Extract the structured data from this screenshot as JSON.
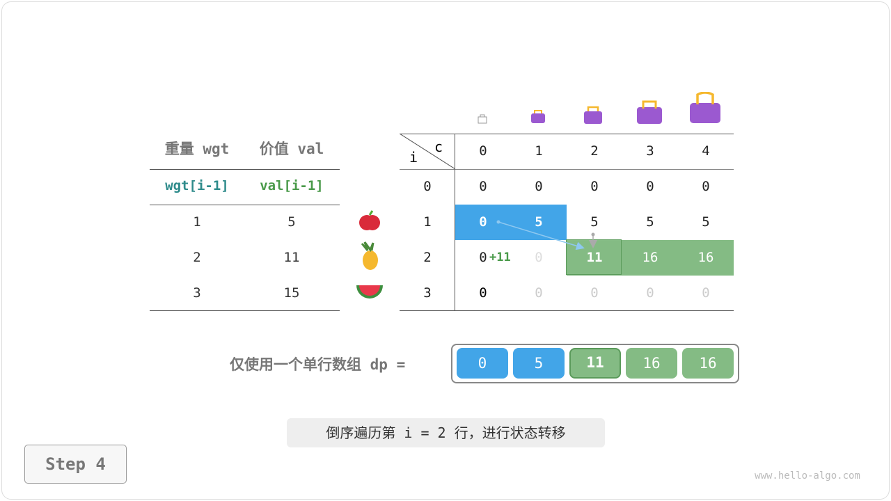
{
  "left_table": {
    "headers": [
      "重量 wgt",
      "价值 val"
    ],
    "subheaders": [
      "wgt[i-1]",
      "val[i-1]"
    ],
    "rows": [
      [
        "1",
        "5"
      ],
      [
        "2",
        "11"
      ],
      [
        "3",
        "15"
      ]
    ]
  },
  "items": [
    "apple-icon",
    "pineapple-icon",
    "watermelon-icon"
  ],
  "dp_table": {
    "corner_i": "i",
    "corner_c": "c",
    "cols": [
      "0",
      "1",
      "2",
      "3",
      "4"
    ],
    "row_labels": [
      "0",
      "1",
      "2",
      "3"
    ],
    "rows": [
      [
        "0",
        "0",
        "0",
        "0",
        "0"
      ],
      [
        "0",
        "5",
        "5",
        "5",
        "5"
      ],
      [
        "0",
        "0",
        "11",
        "16",
        "16"
      ],
      [
        "0",
        "0",
        "0",
        "0",
        "0"
      ]
    ]
  },
  "annotation": "+11",
  "dp_label": "仅使用一个单行数组 dp =",
  "dp_values": [
    "0",
    "5",
    "11",
    "16",
    "16"
  ],
  "caption": "倒序遍历第 i = 2 行，进行状态转移",
  "step": "Step 4",
  "watermark": "www.hello-algo.com",
  "colors": {
    "blue": "#42a5e8",
    "green": "#84bb84",
    "green_dark": "#5a9a5a",
    "teal": "#2e8b8b"
  }
}
